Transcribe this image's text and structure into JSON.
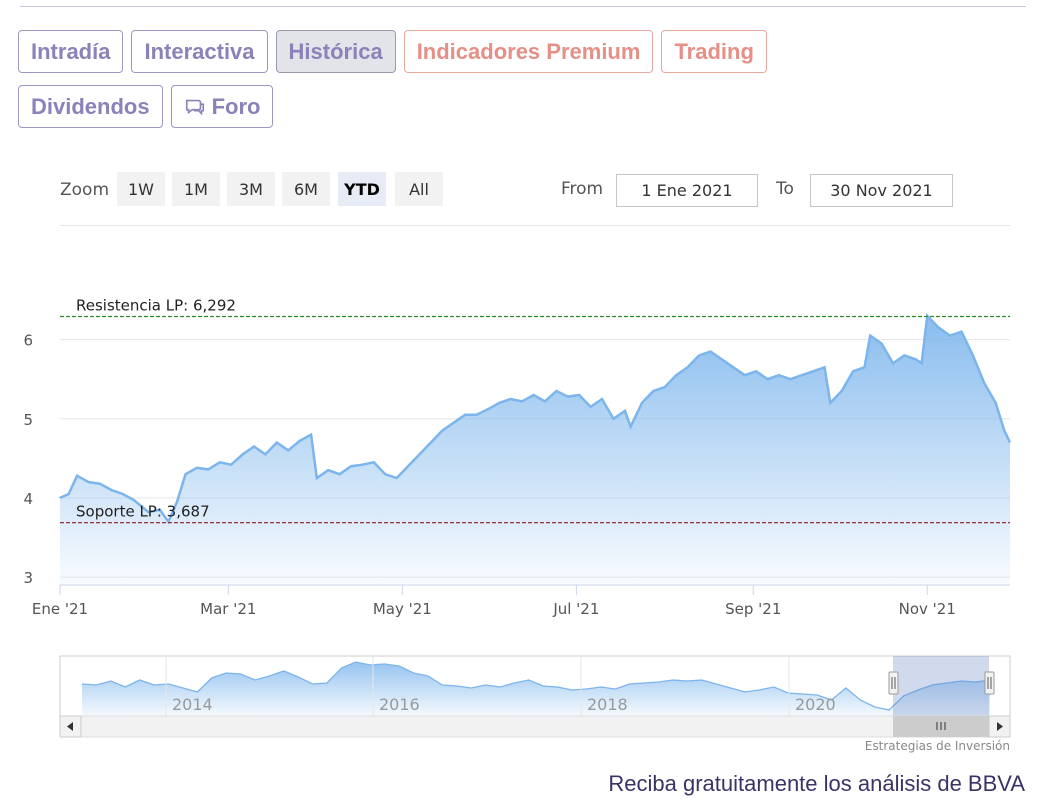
{
  "tabs": {
    "row1": [
      {
        "label": "Intradía",
        "style": "normal"
      },
      {
        "label": "Interactiva",
        "style": "normal"
      },
      {
        "label": "Histórica",
        "style": "active"
      },
      {
        "label": "Indicadores Premium",
        "style": "premium"
      },
      {
        "label": "Trading",
        "style": "premium"
      }
    ],
    "row2": [
      {
        "label": "Dividendos",
        "style": "normal"
      },
      {
        "label": "Foro",
        "style": "normal",
        "icon": "chat-bubbles-icon"
      }
    ]
  },
  "zoom": {
    "label": "Zoom",
    "buttons": [
      "1W",
      "1M",
      "3M",
      "6M",
      "YTD",
      "All"
    ],
    "selected": "YTD"
  },
  "range": {
    "from_label": "From",
    "from_value": "1 Ene 2021",
    "to_label": "To",
    "to_value": "30 Nov 2021"
  },
  "colors": {
    "line": "#7cb5ec",
    "resistance": "#2a8a2a",
    "support": "#8b1a2a",
    "tab_text": "#8a82b8",
    "premium_text": "#e58f86",
    "footer": "#3a3466"
  },
  "chart_data": {
    "type": "area",
    "title": "",
    "xlabel": "",
    "ylabel": "",
    "x_range": [
      "2021-01-01",
      "2021-11-30"
    ],
    "ylim": [
      2.9,
      6.5
    ],
    "y_ticks": [
      3,
      4,
      5,
      6
    ],
    "x_ticks": [
      {
        "date": "2021-01-01",
        "label": "Ene '21"
      },
      {
        "date": "2021-03-01",
        "label": "Mar '21"
      },
      {
        "date": "2021-05-01",
        "label": "May '21"
      },
      {
        "date": "2021-07-01",
        "label": "Jul '21"
      },
      {
        "date": "2021-09-01",
        "label": "Sep '21"
      },
      {
        "date": "2021-11-01",
        "label": "Nov '21"
      }
    ],
    "grid": true,
    "series": [
      {
        "values": [
          [
            "2021-01-01",
            4.0
          ],
          [
            "2021-01-04",
            4.05
          ],
          [
            "2021-01-07",
            4.28
          ],
          [
            "2021-01-11",
            4.2
          ],
          [
            "2021-01-15",
            4.18
          ],
          [
            "2021-01-19",
            4.1
          ],
          [
            "2021-01-23",
            4.05
          ],
          [
            "2021-01-27",
            3.97
          ],
          [
            "2021-02-01",
            3.82
          ],
          [
            "2021-02-05",
            3.85
          ],
          [
            "2021-02-08",
            3.7
          ],
          [
            "2021-02-11",
            3.95
          ],
          [
            "2021-02-14",
            4.3
          ],
          [
            "2021-02-18",
            4.38
          ],
          [
            "2021-02-22",
            4.36
          ],
          [
            "2021-02-26",
            4.45
          ],
          [
            "2021-03-02",
            4.42
          ],
          [
            "2021-03-06",
            4.55
          ],
          [
            "2021-03-10",
            4.65
          ],
          [
            "2021-03-14",
            4.55
          ],
          [
            "2021-03-18",
            4.7
          ],
          [
            "2021-03-22",
            4.6
          ],
          [
            "2021-03-26",
            4.72
          ],
          [
            "2021-03-30",
            4.8
          ],
          [
            "2021-04-01",
            4.25
          ],
          [
            "2021-04-05",
            4.35
          ],
          [
            "2021-04-09",
            4.3
          ],
          [
            "2021-04-13",
            4.4
          ],
          [
            "2021-04-17",
            4.42
          ],
          [
            "2021-04-21",
            4.45
          ],
          [
            "2021-04-25",
            4.3
          ],
          [
            "2021-04-29",
            4.25
          ],
          [
            "2021-05-03",
            4.4
          ],
          [
            "2021-05-07",
            4.55
          ],
          [
            "2021-05-11",
            4.7
          ],
          [
            "2021-05-15",
            4.85
          ],
          [
            "2021-05-19",
            4.95
          ],
          [
            "2021-05-23",
            5.05
          ],
          [
            "2021-05-27",
            5.05
          ],
          [
            "2021-05-31",
            5.12
          ],
          [
            "2021-06-04",
            5.2
          ],
          [
            "2021-06-08",
            5.25
          ],
          [
            "2021-06-12",
            5.22
          ],
          [
            "2021-06-16",
            5.3
          ],
          [
            "2021-06-20",
            5.22
          ],
          [
            "2021-06-24",
            5.35
          ],
          [
            "2021-06-28",
            5.28
          ],
          [
            "2021-07-02",
            5.3
          ],
          [
            "2021-07-06",
            5.15
          ],
          [
            "2021-07-10",
            5.25
          ],
          [
            "2021-07-14",
            5.0
          ],
          [
            "2021-07-18",
            5.1
          ],
          [
            "2021-07-20",
            4.9
          ],
          [
            "2021-07-24",
            5.2
          ],
          [
            "2021-07-28",
            5.35
          ],
          [
            "2021-08-01",
            5.4
          ],
          [
            "2021-08-05",
            5.55
          ],
          [
            "2021-08-09",
            5.65
          ],
          [
            "2021-08-13",
            5.8
          ],
          [
            "2021-08-17",
            5.85
          ],
          [
            "2021-08-21",
            5.75
          ],
          [
            "2021-08-25",
            5.65
          ],
          [
            "2021-08-29",
            5.55
          ],
          [
            "2021-09-02",
            5.6
          ],
          [
            "2021-09-06",
            5.5
          ],
          [
            "2021-09-10",
            5.55
          ],
          [
            "2021-09-14",
            5.5
          ],
          [
            "2021-09-18",
            5.55
          ],
          [
            "2021-09-22",
            5.6
          ],
          [
            "2021-09-26",
            5.65
          ],
          [
            "2021-09-28",
            5.2
          ],
          [
            "2021-10-02",
            5.35
          ],
          [
            "2021-10-06",
            5.6
          ],
          [
            "2021-10-10",
            5.65
          ],
          [
            "2021-10-12",
            6.05
          ],
          [
            "2021-10-16",
            5.95
          ],
          [
            "2021-10-20",
            5.7
          ],
          [
            "2021-10-24",
            5.8
          ],
          [
            "2021-10-28",
            5.75
          ],
          [
            "2021-10-30",
            5.7
          ],
          [
            "2021-11-01",
            6.3
          ],
          [
            "2021-11-05",
            6.15
          ],
          [
            "2021-11-09",
            6.05
          ],
          [
            "2021-11-13",
            6.1
          ],
          [
            "2021-11-17",
            5.8
          ],
          [
            "2021-11-21",
            5.45
          ],
          [
            "2021-11-25",
            5.2
          ],
          [
            "2021-11-28",
            4.85
          ],
          [
            "2021-11-30",
            4.7
          ]
        ]
      }
    ],
    "annotations": [
      {
        "label": "Resistencia LP: 6,292",
        "value": 6.292,
        "kind": "resistance"
      },
      {
        "label": "Soporte LP: 3,687",
        "value": 3.687,
        "kind": "support"
      }
    ]
  },
  "navigator": {
    "labels": [
      "2014",
      "2016",
      "2018",
      "2020"
    ],
    "scroll_thumb_icon": "grip-icon",
    "left_arrow_icon": "arrow-left-icon",
    "right_arrow_icon": "arrow-right-icon"
  },
  "credit": "Estrategias de Inversión",
  "footer": "Reciba gratuitamente los análisis de BBVA"
}
